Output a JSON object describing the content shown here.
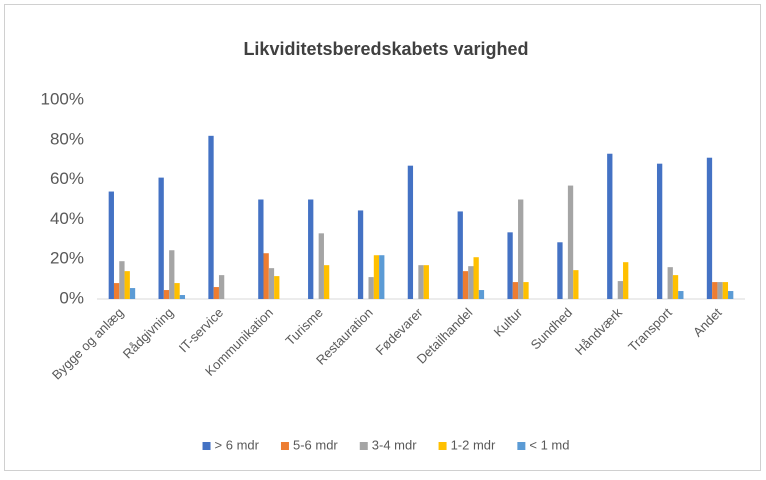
{
  "chart_data": {
    "type": "bar",
    "title": "Likviditetsberedskabets varighed",
    "categories": [
      "Bygge og anlæg",
      "Rådgivning",
      "IT-service",
      "Kommunikation",
      "Turisme",
      "Restauration",
      "Fødevarer",
      "Detailhandel",
      "Kultur",
      "Sundhed",
      "Håndværk",
      "Transport",
      "Andet"
    ],
    "series": [
      {
        "name": "> 6 mdr",
        "color": "#4472c4",
        "values": [
          54,
          61,
          82,
          50,
          50,
          44.5,
          67,
          44,
          33.5,
          28.5,
          73,
          68,
          71
        ]
      },
      {
        "name": "5-6 mdr",
        "color": "#ed7d31",
        "values": [
          8,
          4.5,
          6,
          23,
          0,
          0,
          0,
          14,
          8.5,
          0,
          0,
          0,
          8.5
        ]
      },
      {
        "name": "3-4 mdr",
        "color": "#a5a5a5",
        "values": [
          19,
          24.5,
          12,
          15.5,
          33,
          11,
          17,
          16.5,
          50,
          57,
          9,
          16,
          8.5
        ]
      },
      {
        "name": "1-2 mdr",
        "color": "#ffc000",
        "values": [
          14,
          8,
          0,
          11.5,
          17,
          22,
          17,
          21,
          8.5,
          14.5,
          18.5,
          12,
          8.5
        ]
      },
      {
        "name": "< 1 md",
        "color": "#5b9bd5",
        "values": [
          5.5,
          2,
          0,
          0,
          0,
          22,
          0,
          4.5,
          0,
          0,
          0,
          4,
          4
        ]
      }
    ],
    "ylim": [
      0,
      100
    ],
    "yticks": [
      {
        "value": 0,
        "label": "0%"
      },
      {
        "value": 20,
        "label": "20%"
      },
      {
        "value": 40,
        "label": "40%"
      },
      {
        "value": 60,
        "label": "60%"
      },
      {
        "value": 80,
        "label": "80%"
      },
      {
        "value": 100,
        "label": "100%"
      }
    ],
    "grid": false,
    "legend": "bottom"
  }
}
